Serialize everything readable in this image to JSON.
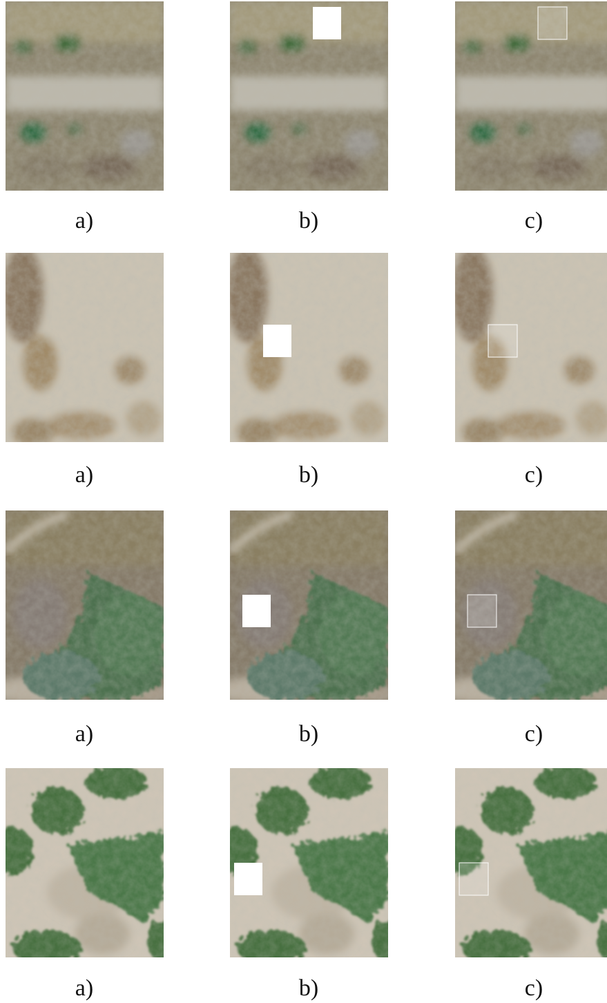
{
  "rows": [
    {
      "panels": [
        {
          "label": "a)"
        },
        {
          "label": "b)"
        },
        {
          "label": "c)"
        }
      ]
    },
    {
      "panels": [
        {
          "label": "a)"
        },
        {
          "label": "b)"
        },
        {
          "label": "c)"
        }
      ]
    },
    {
      "panels": [
        {
          "label": "a)"
        },
        {
          "label": "b)"
        },
        {
          "label": "c)"
        }
      ]
    },
    {
      "panels": [
        {
          "label": "a)"
        },
        {
          "label": "b)"
        },
        {
          "label": "c)"
        }
      ]
    }
  ]
}
